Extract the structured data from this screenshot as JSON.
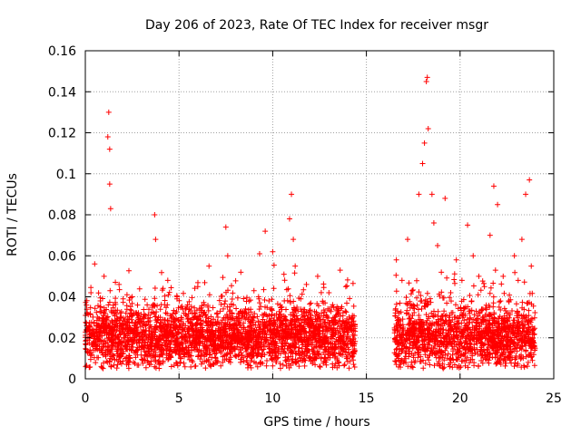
{
  "chart_data": {
    "type": "scatter",
    "title": "Day 206 of 2023, Rate Of TEC Index for receiver msgr",
    "xlabel": "GPS time / hours",
    "ylabel": "ROTI / TECUs",
    "xlim": [
      0,
      25
    ],
    "ylim": [
      0,
      0.16
    ],
    "xticks": [
      0,
      5,
      10,
      15,
      20,
      25
    ],
    "xtick_labels": [
      "0",
      "5",
      "10",
      "15",
      "20",
      "25"
    ],
    "yticks": [
      0,
      0.02,
      0.04,
      0.06,
      0.08,
      0.1,
      0.12,
      0.14,
      0.16
    ],
    "ytick_labels": [
      "0",
      "0.02",
      "0.04",
      "0.06",
      "0.08",
      "0.1",
      "0.12",
      "0.14",
      "0.16"
    ],
    "grid": true,
    "marker": "plus",
    "color": "#ff0000",
    "data_gap_hours": [
      14.4,
      16.5
    ],
    "series": [
      {
        "name": "ROTI",
        "x": [
          0.1,
          0.3,
          0.5,
          0.8,
          1.0,
          1.2,
          1.25,
          1.3,
          1.3,
          1.35,
          1.5,
          1.8,
          2.1,
          2.5,
          2.9,
          3.3,
          3.7,
          3.75,
          4.0,
          4.4,
          4.8,
          5.2,
          5.6,
          6.0,
          6.4,
          6.6,
          6.8,
          7.2,
          7.5,
          7.6,
          7.9,
          8.3,
          8.7,
          9.0,
          9.3,
          9.6,
          9.8,
          10.0,
          10.3,
          10.6,
          10.9,
          11.0,
          11.1,
          11.2,
          11.5,
          11.8,
          12.1,
          12.4,
          12.7,
          13.0,
          13.3,
          13.6,
          13.9,
          14.2,
          16.6,
          16.9,
          17.2,
          17.5,
          17.8,
          18.0,
          18.1,
          18.2,
          18.25,
          18.3,
          18.5,
          18.6,
          18.8,
          19.0,
          19.2,
          19.5,
          19.8,
          20.1,
          20.4,
          20.7,
          21.0,
          21.3,
          21.6,
          21.8,
          22.0,
          22.3,
          22.6,
          22.9,
          23.1,
          23.3,
          23.5,
          23.7,
          23.8
        ],
        "y": [
          0.024,
          0.042,
          0.056,
          0.038,
          0.05,
          0.118,
          0.13,
          0.112,
          0.095,
          0.083,
          0.032,
          0.046,
          0.022,
          0.04,
          0.028,
          0.036,
          0.08,
          0.068,
          0.03,
          0.048,
          0.025,
          0.034,
          0.027,
          0.045,
          0.031,
          0.055,
          0.026,
          0.033,
          0.074,
          0.06,
          0.036,
          0.052,
          0.029,
          0.043,
          0.061,
          0.072,
          0.038,
          0.062,
          0.03,
          0.051,
          0.078,
          0.09,
          0.068,
          0.055,
          0.034,
          0.046,
          0.028,
          0.05,
          0.037,
          0.042,
          0.03,
          0.053,
          0.045,
          0.027,
          0.058,
          0.048,
          0.068,
          0.036,
          0.09,
          0.105,
          0.115,
          0.145,
          0.147,
          0.122,
          0.09,
          0.076,
          0.065,
          0.052,
          0.088,
          0.042,
          0.058,
          0.048,
          0.075,
          0.06,
          0.05,
          0.045,
          0.07,
          0.094,
          0.085,
          0.05,
          0.038,
          0.06,
          0.048,
          0.068,
          0.09,
          0.097,
          0.055
        ]
      }
    ]
  }
}
